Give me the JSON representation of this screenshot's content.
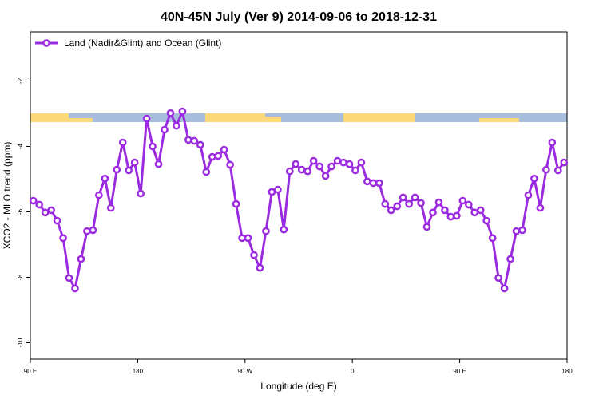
{
  "chart_data": {
    "type": "line",
    "title": "40N-45N July (Ver 9)   2014-09-06 to 2018-12-31",
    "xlabel": "Longitude (deg E)",
    "ylabel": "XCO2 - MLO trend (ppm)",
    "legend": "top-left",
    "x": [
      92.5,
      97.5,
      102.5,
      107.5,
      112.5,
      117.5,
      122.5,
      127.5,
      132.5,
      137.5,
      142.5,
      147.5,
      152.5,
      157.5,
      162.5,
      167.5,
      172.5,
      177.5,
      182.5,
      187.5,
      192.5,
      197.5,
      202.5,
      207.5,
      212.5,
      217.5,
      222.5,
      227.5,
      232.5,
      237.5,
      242.5,
      247.5,
      252.5,
      257.5,
      262.5,
      267.5,
      272.5,
      277.5,
      282.5,
      287.5,
      292.5,
      297.5,
      302.5,
      307.5,
      312.5,
      317.5,
      322.5,
      327.5,
      332.5,
      337.5,
      342.5,
      347.5,
      352.5,
      357.5,
      362.5,
      367.5,
      372.5,
      377.5,
      382.5,
      387.5,
      392.5,
      397.5,
      402.5,
      407.5,
      412.5,
      417.5,
      422.5,
      427.5,
      432.5,
      437.5,
      442.5,
      447.5,
      452.5,
      457.5,
      462.5,
      467.5,
      472.5,
      477.5,
      482.5,
      487.5,
      492.5,
      497.5,
      502.5,
      507.5,
      512.5,
      517.5,
      522.5,
      527.5,
      532.5,
      537.5
    ],
    "series": [
      {
        "name": "Land (Nadir&Glint) and Ocean (Glint)",
        "color": "#9b2be0",
        "values": [
          -5.66,
          -5.78,
          -6.02,
          -5.95,
          -6.27,
          -6.8,
          -8.02,
          -8.34,
          -7.44,
          -6.59,
          -6.56,
          -5.49,
          -4.98,
          -5.88,
          -4.71,
          -3.88,
          -4.73,
          -4.49,
          -5.44,
          -3.15,
          -4.0,
          -4.54,
          -3.49,
          -2.98,
          -3.37,
          -2.93,
          -3.8,
          -3.83,
          -3.95,
          -4.78,
          -4.32,
          -4.29,
          -4.1,
          -4.56,
          -5.76,
          -6.8,
          -6.8,
          -7.32,
          -7.71,
          -6.59,
          -5.39,
          -5.32,
          -6.54,
          -4.76,
          -4.54,
          -4.71,
          -4.76,
          -4.44,
          -4.61,
          -4.9,
          -4.61,
          -4.44,
          -4.49,
          -4.54,
          -4.73,
          -4.49,
          -5.07,
          -5.12,
          -5.12,
          -5.76,
          -5.95,
          -5.83,
          -5.56,
          -5.76,
          -5.56,
          -5.73,
          -6.46,
          -6.02,
          -5.71,
          -5.95,
          -6.15,
          -6.12,
          -5.66,
          -5.78,
          -6.02,
          -5.95,
          -6.27,
          -6.8,
          -8.02,
          -8.34,
          -7.44,
          -6.59,
          -6.56,
          -5.49,
          -4.98,
          -5.88,
          -4.71,
          -3.88,
          -4.73,
          -4.49
        ]
      }
    ],
    "xlim": [
      90,
      540
    ],
    "xticks": [
      {
        "value": 90,
        "label": "90 E"
      },
      180,
      {
        "value": 270,
        "label": "90 W"
      },
      {
        "value": 360,
        "label": "0"
      },
      {
        "value": 450,
        "label": "90 E"
      },
      {
        "value": 540,
        "label": "180"
      }
    ],
    "ylim": [
      -10.5,
      -0.5
    ],
    "yticks": [
      -2,
      -4,
      -6,
      -8,
      -10
    ]
  }
}
